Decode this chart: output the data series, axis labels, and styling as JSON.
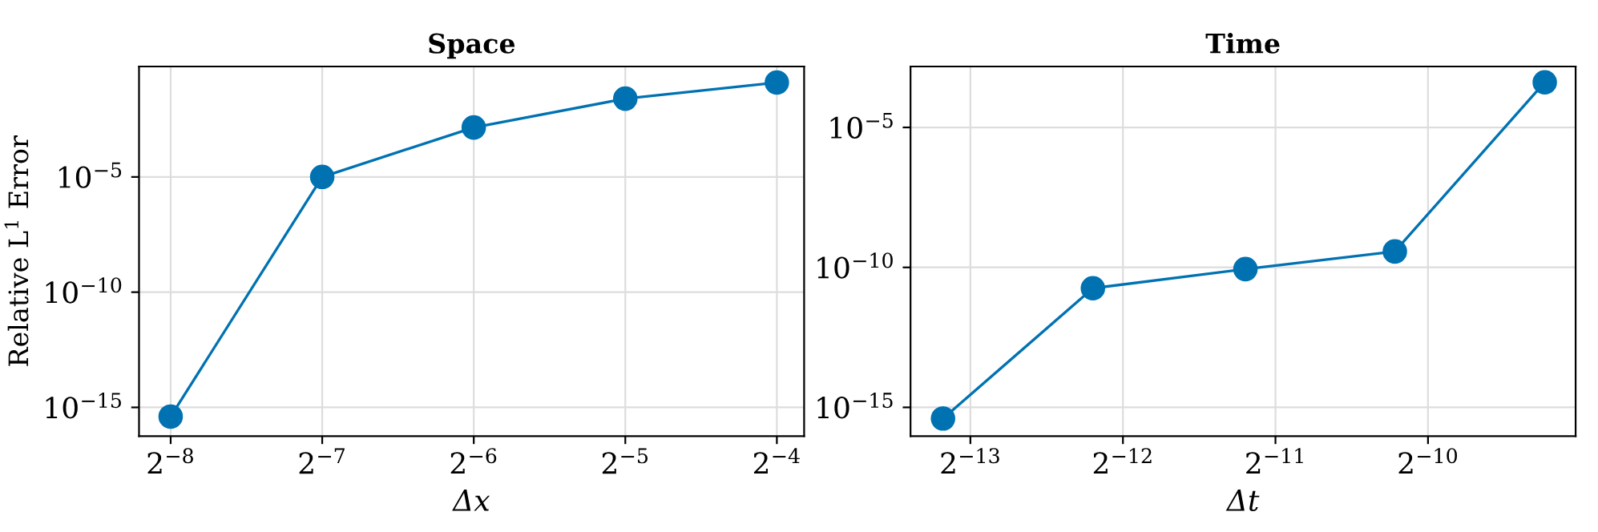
{
  "chart_data": [
    {
      "type": "line",
      "title": "Space",
      "xlabel": "Δx",
      "ylabel": "Relative L$^{1}$ Error",
      "log": "xy",
      "grid": true,
      "marker": "circle",
      "line_style": "solid",
      "x": [
        0.00390625,
        0.0078125,
        0.015625,
        0.03125,
        0.0625
      ],
      "series": [
        {
          "color": "#0072b2",
          "values": [
            4e-16,
            1e-05,
            0.0014,
            0.025,
            0.125
          ]
        }
      ],
      "xlim": [
        0.00338,
        0.0708
      ],
      "ylim": [
        5.6e-17,
        0.62
      ],
      "xticks": [
        {
          "value": 0.00390625,
          "label": "2$^{−8}$"
        },
        {
          "value": 0.0078125,
          "label": "2$^{−7}$"
        },
        {
          "value": 0.015625,
          "label": "2$^{−6}$"
        },
        {
          "value": 0.03125,
          "label": "2$^{−5}$"
        },
        {
          "value": 0.0625,
          "label": "2$^{−4}$"
        }
      ],
      "yticks": [
        {
          "value": 1e-15,
          "label": "10$^{−15}$"
        },
        {
          "value": 1e-10,
          "label": "10$^{−10}$"
        },
        {
          "value": 1e-05,
          "label": "10$^{−5}$"
        }
      ]
    },
    {
      "type": "line",
      "title": "Time",
      "xlabel": "Δt",
      "log": "xy",
      "grid": true,
      "marker": "circle",
      "line_style": "solid",
      "x": [
        0.0001078,
        0.000213,
        0.000426,
        0.00084,
        0.00166
      ],
      "series": [
        {
          "color": "#0072b2",
          "values": [
            4e-16,
            1.8e-11,
            8.7e-11,
            3.7e-10,
            0.00041
          ]
        }
      ],
      "xlim": [
        9.3e-05,
        0.00191
      ],
      "ylim": [
        9.3e-17,
        0.0015
      ],
      "xticks": [
        {
          "value": 0.0001220703125,
          "label": "2$^{−13}$"
        },
        {
          "value": 0.000244140625,
          "label": "2$^{−12}$"
        },
        {
          "value": 0.00048828125,
          "label": "2$^{−11}$"
        },
        {
          "value": 0.0009765625,
          "label": "2$^{−10}$"
        }
      ],
      "yticks": [
        {
          "value": 1e-15,
          "label": "10$^{−15}$"
        },
        {
          "value": 1e-10,
          "label": "10$^{−10}$"
        },
        {
          "value": 1e-05,
          "label": "10$^{−5}$"
        }
      ]
    }
  ]
}
